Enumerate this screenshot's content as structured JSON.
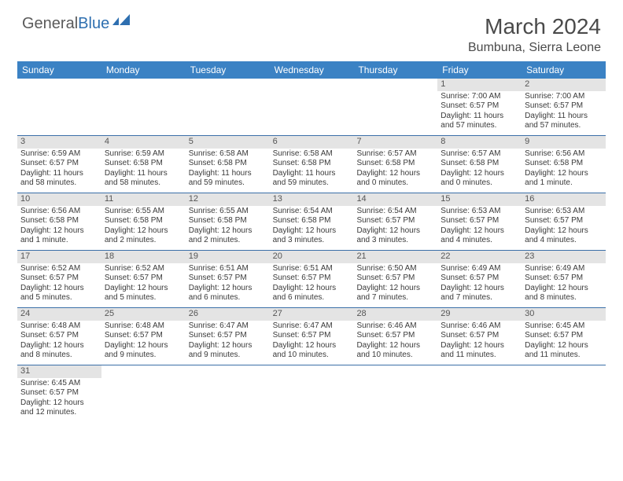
{
  "logo": {
    "part1": "General",
    "part2": "Blue"
  },
  "title": "March 2024",
  "location": "Bumbuna, Sierra Leone",
  "day_headers": [
    "Sunday",
    "Monday",
    "Tuesday",
    "Wednesday",
    "Thursday",
    "Friday",
    "Saturday"
  ],
  "colors": {
    "header_bg": "#3b82c4",
    "header_text": "#ffffff",
    "row_border": "#3b6fa8",
    "daynum_bg": "#e4e4e4",
    "text": "#3a3a3a",
    "logo_gray": "#5a5a5a",
    "logo_blue": "#2e6fb0"
  },
  "weeks": [
    [
      {
        "empty": true
      },
      {
        "empty": true
      },
      {
        "empty": true
      },
      {
        "empty": true
      },
      {
        "empty": true
      },
      {
        "day": "1",
        "sunrise": "Sunrise: 7:00 AM",
        "sunset": "Sunset: 6:57 PM",
        "daylight1": "Daylight: 11 hours",
        "daylight2": "and 57 minutes."
      },
      {
        "day": "2",
        "sunrise": "Sunrise: 7:00 AM",
        "sunset": "Sunset: 6:57 PM",
        "daylight1": "Daylight: 11 hours",
        "daylight2": "and 57 minutes."
      }
    ],
    [
      {
        "day": "3",
        "sunrise": "Sunrise: 6:59 AM",
        "sunset": "Sunset: 6:57 PM",
        "daylight1": "Daylight: 11 hours",
        "daylight2": "and 58 minutes."
      },
      {
        "day": "4",
        "sunrise": "Sunrise: 6:59 AM",
        "sunset": "Sunset: 6:58 PM",
        "daylight1": "Daylight: 11 hours",
        "daylight2": "and 58 minutes."
      },
      {
        "day": "5",
        "sunrise": "Sunrise: 6:58 AM",
        "sunset": "Sunset: 6:58 PM",
        "daylight1": "Daylight: 11 hours",
        "daylight2": "and 59 minutes."
      },
      {
        "day": "6",
        "sunrise": "Sunrise: 6:58 AM",
        "sunset": "Sunset: 6:58 PM",
        "daylight1": "Daylight: 11 hours",
        "daylight2": "and 59 minutes."
      },
      {
        "day": "7",
        "sunrise": "Sunrise: 6:57 AM",
        "sunset": "Sunset: 6:58 PM",
        "daylight1": "Daylight: 12 hours",
        "daylight2": "and 0 minutes."
      },
      {
        "day": "8",
        "sunrise": "Sunrise: 6:57 AM",
        "sunset": "Sunset: 6:58 PM",
        "daylight1": "Daylight: 12 hours",
        "daylight2": "and 0 minutes."
      },
      {
        "day": "9",
        "sunrise": "Sunrise: 6:56 AM",
        "sunset": "Sunset: 6:58 PM",
        "daylight1": "Daylight: 12 hours",
        "daylight2": "and 1 minute."
      }
    ],
    [
      {
        "day": "10",
        "sunrise": "Sunrise: 6:56 AM",
        "sunset": "Sunset: 6:58 PM",
        "daylight1": "Daylight: 12 hours",
        "daylight2": "and 1 minute."
      },
      {
        "day": "11",
        "sunrise": "Sunrise: 6:55 AM",
        "sunset": "Sunset: 6:58 PM",
        "daylight1": "Daylight: 12 hours",
        "daylight2": "and 2 minutes."
      },
      {
        "day": "12",
        "sunrise": "Sunrise: 6:55 AM",
        "sunset": "Sunset: 6:58 PM",
        "daylight1": "Daylight: 12 hours",
        "daylight2": "and 2 minutes."
      },
      {
        "day": "13",
        "sunrise": "Sunrise: 6:54 AM",
        "sunset": "Sunset: 6:58 PM",
        "daylight1": "Daylight: 12 hours",
        "daylight2": "and 3 minutes."
      },
      {
        "day": "14",
        "sunrise": "Sunrise: 6:54 AM",
        "sunset": "Sunset: 6:57 PM",
        "daylight1": "Daylight: 12 hours",
        "daylight2": "and 3 minutes."
      },
      {
        "day": "15",
        "sunrise": "Sunrise: 6:53 AM",
        "sunset": "Sunset: 6:57 PM",
        "daylight1": "Daylight: 12 hours",
        "daylight2": "and 4 minutes."
      },
      {
        "day": "16",
        "sunrise": "Sunrise: 6:53 AM",
        "sunset": "Sunset: 6:57 PM",
        "daylight1": "Daylight: 12 hours",
        "daylight2": "and 4 minutes."
      }
    ],
    [
      {
        "day": "17",
        "sunrise": "Sunrise: 6:52 AM",
        "sunset": "Sunset: 6:57 PM",
        "daylight1": "Daylight: 12 hours",
        "daylight2": "and 5 minutes."
      },
      {
        "day": "18",
        "sunrise": "Sunrise: 6:52 AM",
        "sunset": "Sunset: 6:57 PM",
        "daylight1": "Daylight: 12 hours",
        "daylight2": "and 5 minutes."
      },
      {
        "day": "19",
        "sunrise": "Sunrise: 6:51 AM",
        "sunset": "Sunset: 6:57 PM",
        "daylight1": "Daylight: 12 hours",
        "daylight2": "and 6 minutes."
      },
      {
        "day": "20",
        "sunrise": "Sunrise: 6:51 AM",
        "sunset": "Sunset: 6:57 PM",
        "daylight1": "Daylight: 12 hours",
        "daylight2": "and 6 minutes."
      },
      {
        "day": "21",
        "sunrise": "Sunrise: 6:50 AM",
        "sunset": "Sunset: 6:57 PM",
        "daylight1": "Daylight: 12 hours",
        "daylight2": "and 7 minutes."
      },
      {
        "day": "22",
        "sunrise": "Sunrise: 6:49 AM",
        "sunset": "Sunset: 6:57 PM",
        "daylight1": "Daylight: 12 hours",
        "daylight2": "and 7 minutes."
      },
      {
        "day": "23",
        "sunrise": "Sunrise: 6:49 AM",
        "sunset": "Sunset: 6:57 PM",
        "daylight1": "Daylight: 12 hours",
        "daylight2": "and 8 minutes."
      }
    ],
    [
      {
        "day": "24",
        "sunrise": "Sunrise: 6:48 AM",
        "sunset": "Sunset: 6:57 PM",
        "daylight1": "Daylight: 12 hours",
        "daylight2": "and 8 minutes."
      },
      {
        "day": "25",
        "sunrise": "Sunrise: 6:48 AM",
        "sunset": "Sunset: 6:57 PM",
        "daylight1": "Daylight: 12 hours",
        "daylight2": "and 9 minutes."
      },
      {
        "day": "26",
        "sunrise": "Sunrise: 6:47 AM",
        "sunset": "Sunset: 6:57 PM",
        "daylight1": "Daylight: 12 hours",
        "daylight2": "and 9 minutes."
      },
      {
        "day": "27",
        "sunrise": "Sunrise: 6:47 AM",
        "sunset": "Sunset: 6:57 PM",
        "daylight1": "Daylight: 12 hours",
        "daylight2": "and 10 minutes."
      },
      {
        "day": "28",
        "sunrise": "Sunrise: 6:46 AM",
        "sunset": "Sunset: 6:57 PM",
        "daylight1": "Daylight: 12 hours",
        "daylight2": "and 10 minutes."
      },
      {
        "day": "29",
        "sunrise": "Sunrise: 6:46 AM",
        "sunset": "Sunset: 6:57 PM",
        "daylight1": "Daylight: 12 hours",
        "daylight2": "and 11 minutes."
      },
      {
        "day": "30",
        "sunrise": "Sunrise: 6:45 AM",
        "sunset": "Sunset: 6:57 PM",
        "daylight1": "Daylight: 12 hours",
        "daylight2": "and 11 minutes."
      }
    ],
    [
      {
        "day": "31",
        "sunrise": "Sunrise: 6:45 AM",
        "sunset": "Sunset: 6:57 PM",
        "daylight1": "Daylight: 12 hours",
        "daylight2": "and 12 minutes."
      },
      {
        "empty": true
      },
      {
        "empty": true
      },
      {
        "empty": true
      },
      {
        "empty": true
      },
      {
        "empty": true
      },
      {
        "empty": true
      }
    ]
  ]
}
